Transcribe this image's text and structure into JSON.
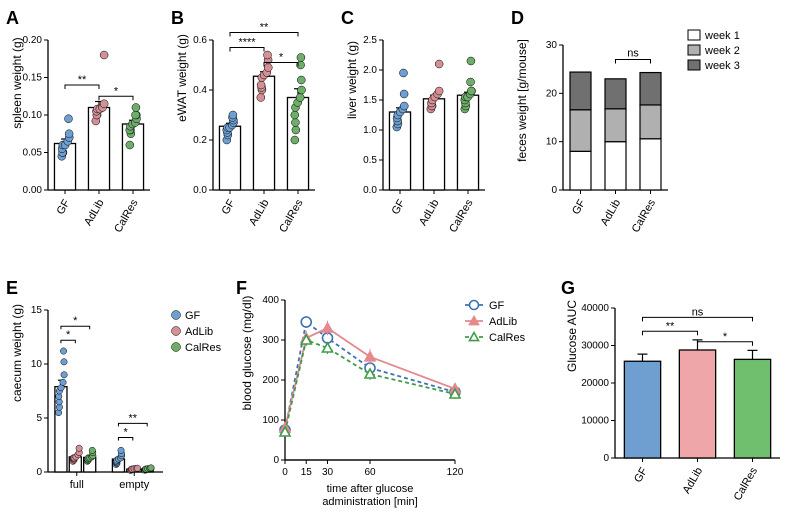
{
  "global": {
    "groups": [
      "GF",
      "AdLib",
      "CalRes"
    ],
    "colors": {
      "GF": "#6f9fd1",
      "AdLib": "#d49097",
      "CalRes": "#6fae6a",
      "GF_solid": "#3f70b5",
      "AdLib_solid": "#d49097",
      "CalRes_solid": "#3f9c46"
    },
    "background": "#ffffff",
    "axis_color": "#000000",
    "label_fontsize": 12,
    "tick_fontsize": 10
  },
  "panelA": {
    "label": "A",
    "type": "bar+scatter",
    "ylabel": "spleen weight (g)",
    "ylim": [
      0,
      0.2
    ],
    "ytick_step": 0.05,
    "bar_width": 0.6,
    "data": {
      "GF": [
        0.045,
        0.05,
        0.05,
        0.055,
        0.06,
        0.06,
        0.065,
        0.07,
        0.075,
        0.095
      ],
      "AdLib": [
        0.092,
        0.1,
        0.1,
        0.105,
        0.108,
        0.108,
        0.11,
        0.115,
        0.18
      ],
      "CalRes": [
        0.06,
        0.075,
        0.08,
        0.08,
        0.085,
        0.088,
        0.09,
        0.095,
        0.1,
        0.1,
        0.11
      ]
    },
    "means": {
      "GF": 0.062,
      "AdLib": 0.11,
      "CalRes": 0.088
    },
    "sems": {
      "GF": 0.006,
      "AdLib": 0.008,
      "CalRes": 0.005
    },
    "sig": [
      {
        "g1": "GF",
        "g2": "AdLib",
        "label": "**",
        "y": 0.14
      },
      {
        "g1": "AdLib",
        "g2": "CalRes",
        "label": "*",
        "y": 0.125
      }
    ]
  },
  "panelB": {
    "label": "B",
    "type": "bar+scatter",
    "ylabel": "eWAT weight (g)",
    "ylim": [
      0,
      0.6
    ],
    "ytick_step": 0.2,
    "data": {
      "GF": [
        0.2,
        0.22,
        0.23,
        0.24,
        0.25,
        0.25,
        0.26,
        0.27,
        0.28,
        0.29,
        0.3
      ],
      "AdLib": [
        0.37,
        0.4,
        0.41,
        0.42,
        0.45,
        0.46,
        0.47,
        0.49,
        0.52,
        0.54
      ],
      "CalRes": [
        0.2,
        0.24,
        0.27,
        0.3,
        0.33,
        0.35,
        0.37,
        0.4,
        0.44,
        0.5,
        0.53
      ]
    },
    "means": {
      "GF": 0.255,
      "AdLib": 0.455,
      "CalRes": 0.37
    },
    "sems": {
      "GF": 0.012,
      "AdLib": 0.018,
      "CalRes": 0.035
    },
    "sig": [
      {
        "g1": "GF",
        "g2": "AdLib",
        "label": "****",
        "y": 0.57
      },
      {
        "g1": "GF",
        "g2": "CalRes",
        "label": "**",
        "y": 0.63
      },
      {
        "g1": "AdLib",
        "g2": "CalRes",
        "label": "*",
        "y": 0.51
      }
    ]
  },
  "panelC": {
    "label": "C",
    "type": "bar+scatter",
    "ylabel": "liver weight (g)",
    "ylim": [
      0,
      2.5
    ],
    "ytick_step": 0.5,
    "data": {
      "GF": [
        1.05,
        1.1,
        1.15,
        1.2,
        1.25,
        1.3,
        1.35,
        1.4,
        1.6,
        1.95
      ],
      "AdLib": [
        1.35,
        1.4,
        1.4,
        1.45,
        1.5,
        1.55,
        1.6,
        1.65,
        2.1
      ],
      "CalRes": [
        1.35,
        1.4,
        1.45,
        1.5,
        1.55,
        1.55,
        1.6,
        1.65,
        1.65,
        1.8,
        2.15
      ]
    },
    "means": {
      "GF": 1.3,
      "AdLib": 1.52,
      "CalRes": 1.58
    },
    "sems": {
      "GF": 0.07,
      "AdLib": 0.06,
      "CalRes": 0.05
    },
    "sig": []
  },
  "panelD": {
    "label": "D",
    "type": "stacked-bar",
    "ylabel": "feces weight [g/mouse]",
    "ylim": [
      0,
      30
    ],
    "ytick_step": 10,
    "legend_items": [
      "week 1",
      "week 2",
      "week 3"
    ],
    "stack_colors": [
      "#ffffff",
      "#b0b0b0",
      "#707070"
    ],
    "data": {
      "GF": [
        8.0,
        8.6,
        7.8
      ],
      "AdLib": [
        10.0,
        6.8,
        6.2
      ],
      "CalRes": [
        10.6,
        7.0,
        6.7
      ]
    },
    "sig": [
      {
        "g1": "AdLib",
        "g2": "CalRes",
        "label": "ns",
        "y": 27
      }
    ]
  },
  "panelE": {
    "label": "E",
    "type": "grouped-bar+scatter",
    "ylabel": "caecum weight (g)",
    "ylim": [
      0,
      15
    ],
    "ytick_step": 5,
    "xgroups": [
      "full",
      "empty"
    ],
    "legend": [
      "GF",
      "AdLib",
      "CalRes"
    ],
    "data": {
      "full": {
        "GF": [
          5.5,
          6.0,
          6.5,
          7.0,
          7.5,
          7.8,
          8.3,
          9.0,
          10.2,
          11.2
        ],
        "AdLib": [
          1.0,
          1.1,
          1.2,
          1.3,
          1.3,
          1.4,
          1.6,
          1.8,
          2.2
        ],
        "CalRes": [
          1.0,
          1.1,
          1.1,
          1.2,
          1.3,
          1.3,
          1.4,
          1.5,
          1.8,
          2.0
        ]
      },
      "empty": {
        "GF": [
          0.7,
          0.8,
          0.9,
          1.0,
          1.1,
          1.2,
          1.3,
          1.5,
          1.7,
          2.0
        ],
        "AdLib": [
          0.15,
          0.2,
          0.22,
          0.25,
          0.27,
          0.3,
          0.33,
          0.35
        ],
        "CalRes": [
          0.17,
          0.2,
          0.23,
          0.25,
          0.27,
          0.3,
          0.33,
          0.35,
          0.38
        ]
      }
    },
    "means": {
      "full": {
        "GF": 7.9,
        "AdLib": 1.4,
        "CalRes": 1.35
      },
      "empty": {
        "GF": 1.2,
        "AdLib": 0.27,
        "CalRes": 0.28
      }
    },
    "sems": {
      "full": {
        "GF": 0.6,
        "AdLib": 0.15,
        "CalRes": 0.12
      },
      "empty": {
        "GF": 0.15,
        "AdLib": 0.03,
        "CalRes": 0.03
      }
    },
    "sig": [
      {
        "xg": "full",
        "g1": "GF",
        "g2": "AdLib",
        "label": "*",
        "y": 12.2
      },
      {
        "xg": "full",
        "g1": "GF",
        "g2": "CalRes",
        "label": "*",
        "y": 13.5
      },
      {
        "xg": "empty",
        "g1": "GF",
        "g2": "AdLib",
        "label": "*",
        "y": 3.2
      },
      {
        "xg": "empty",
        "g1": "GF",
        "g2": "CalRes",
        "label": "**",
        "y": 4.5
      }
    ]
  },
  "panelF": {
    "label": "F",
    "type": "line",
    "ylabel": "blood glucose (mg/dl)",
    "xlabel": "time after glucose\nadministration [min]",
    "ylim": [
      0,
      400
    ],
    "ytick_step": 100,
    "xticks": [
      0,
      15,
      30,
      60,
      120
    ],
    "xlim": [
      0,
      120
    ],
    "series": {
      "GF": {
        "marker": "o",
        "open": true,
        "dash": "4,3",
        "color": "#3f70b5",
        "y": [
          75,
          345,
          305,
          230,
          170
        ],
        "err": [
          8,
          15,
          15,
          15,
          12
        ]
      },
      "AdLib": {
        "marker": "^",
        "open": false,
        "dash": "",
        "color": "#e4898d",
        "y": [
          80,
          305,
          330,
          258,
          178
        ],
        "err": [
          8,
          18,
          18,
          20,
          12
        ]
      },
      "CalRes": {
        "marker": "^",
        "open": true,
        "dash": "4,3",
        "color": "#3f9c46",
        "y": [
          70,
          300,
          280,
          215,
          165
        ],
        "err": [
          8,
          15,
          15,
          15,
          12
        ]
      }
    }
  },
  "panelG": {
    "label": "G",
    "type": "bar",
    "ylabel": "Glucose AUC",
    "ylim": [
      0,
      40000
    ],
    "ytick_step": 10000,
    "bar_colors": {
      "GF": "#6f9fd1",
      "AdLib": "#efa6a8",
      "CalRes": "#6fbf6f"
    },
    "means": {
      "GF": 25800,
      "AdLib": 28800,
      "CalRes": 26300
    },
    "sems": {
      "GF": 1900,
      "AdLib": 2700,
      "CalRes": 2400
    },
    "sig": [
      {
        "g1": "GF",
        "g2": "AdLib",
        "label": "**",
        "y": 33800
      },
      {
        "g1": "GF",
        "g2": "CalRes",
        "label": "ns",
        "y": 37500
      },
      {
        "g1": "AdLib",
        "g2": "CalRes",
        "label": "*",
        "y": 31000
      }
    ]
  }
}
